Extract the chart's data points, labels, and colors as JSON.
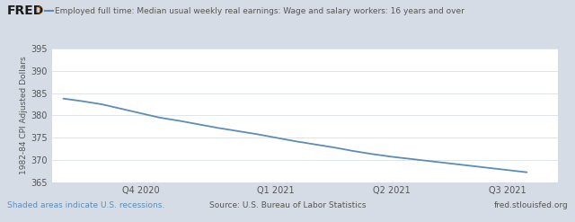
{
  "title": "Employed full time: Median usual weekly real earnings: Wage and salary workers: 16 years and over",
  "ylabel": "1982-84 CPI Adjusted Dollars",
  "fig_bg_color": "#d6dce5",
  "header_bg_color": "#d6dce5",
  "plot_bg_color": "#ffffff",
  "line_color": "#5b8db8",
  "line_width": 1.3,
  "x_values": [
    0,
    0.5,
    1,
    1.5,
    2,
    2.5,
    3,
    3.5,
    4,
    4.5,
    5,
    5.5,
    6,
    6.5,
    7,
    7.5,
    8,
    8.5,
    9,
    9.5,
    10,
    10.5,
    11,
    11.5,
    12
  ],
  "y_values": [
    383.8,
    383.2,
    382.5,
    381.5,
    380.5,
    379.5,
    378.8,
    378.0,
    377.2,
    376.5,
    375.8,
    375.0,
    374.2,
    373.5,
    372.8,
    372.0,
    371.3,
    370.7,
    370.2,
    369.7,
    369.2,
    368.7,
    368.2,
    367.7,
    367.2
  ],
  "ylim": [
    365,
    395
  ],
  "yticks": [
    365,
    370,
    375,
    380,
    385,
    390,
    395
  ],
  "xlim": [
    -0.3,
    12.8
  ],
  "xtick_positions": [
    2,
    5.5,
    8.5,
    11.5
  ],
  "xtick_labels": [
    "Q4 2020",
    "Q1 2021",
    "Q2 2021",
    "Q3 2021"
  ],
  "fred_text": "FRED",
  "source_text": "Source: U.S. Bureau of Labor Statistics",
  "recession_text": "Shaded areas indicate U.S. recessions.",
  "website_text": "fred.stlouisfed.org",
  "tick_color": "#555555",
  "footer_color": "#555555",
  "recession_color": "#5b8db8",
  "grid_color": "#e0e5ec",
  "header_line_color": "#5b8db8",
  "header_label_color": "#555555"
}
